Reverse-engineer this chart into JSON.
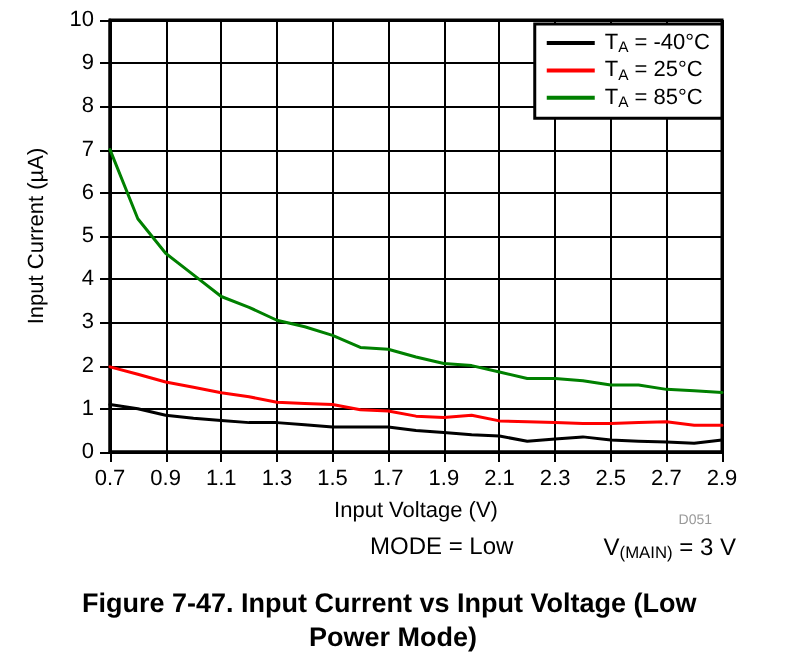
{
  "chart_data": {
    "type": "line",
    "title": "Figure 7-47. Input Current vs Input Voltage (Low Power Mode)",
    "xlabel": "Input Voltage (V)",
    "ylabel": "Input Current (µA)",
    "x": [
      0.7,
      0.8,
      0.9,
      1.0,
      1.1,
      1.2,
      1.3,
      1.4,
      1.5,
      1.6,
      1.7,
      1.8,
      1.9,
      2.0,
      2.1,
      2.2,
      2.3,
      2.4,
      2.5,
      2.6,
      2.7,
      2.8,
      2.9
    ],
    "series": [
      {
        "name": "T$_{A}$ = -40°C",
        "color": "#000000",
        "values": [
          1.1,
          1.0,
          0.85,
          0.78,
          0.73,
          0.68,
          0.68,
          0.63,
          0.58,
          0.58,
          0.58,
          0.5,
          0.45,
          0.4,
          0.37,
          0.25,
          0.3,
          0.35,
          0.28,
          0.25,
          0.23,
          0.2,
          0.28
        ]
      },
      {
        "name": "T$_{A}$ = 25°C",
        "color": "#ff0000",
        "values": [
          1.97,
          1.8,
          1.62,
          1.5,
          1.37,
          1.28,
          1.15,
          1.12,
          1.1,
          0.98,
          0.95,
          0.83,
          0.8,
          0.85,
          0.72,
          0.7,
          0.68,
          0.66,
          0.66,
          0.68,
          0.7,
          0.62,
          0.62
        ]
      },
      {
        "name": "T$_{A}$ = 85°C",
        "color": "#008000",
        "values": [
          7.0,
          5.4,
          4.6,
          4.1,
          3.6,
          3.35,
          3.05,
          2.9,
          2.7,
          2.42,
          2.38,
          2.2,
          2.05,
          2.0,
          1.85,
          1.7,
          1.7,
          1.65,
          1.55,
          1.55,
          1.45,
          1.42,
          1.38
        ]
      }
    ],
    "xlim": [
      0.7,
      2.9
    ],
    "xticks": [
      0.7,
      0.9,
      1.1,
      1.3,
      1.5,
      1.7,
      1.9,
      2.1,
      2.3,
      2.5,
      2.7,
      2.9
    ],
    "ylim": [
      0,
      10
    ],
    "yticks": [
      0,
      1,
      2,
      3,
      4,
      5,
      6,
      7,
      8,
      9,
      10
    ],
    "grid": true,
    "legend": "top right",
    "marker": "none",
    "line_style": "solid",
    "annotations": [
      "D051",
      "MODE = Low",
      "V$_{(MAIN)}$ = 3 V"
    ]
  }
}
